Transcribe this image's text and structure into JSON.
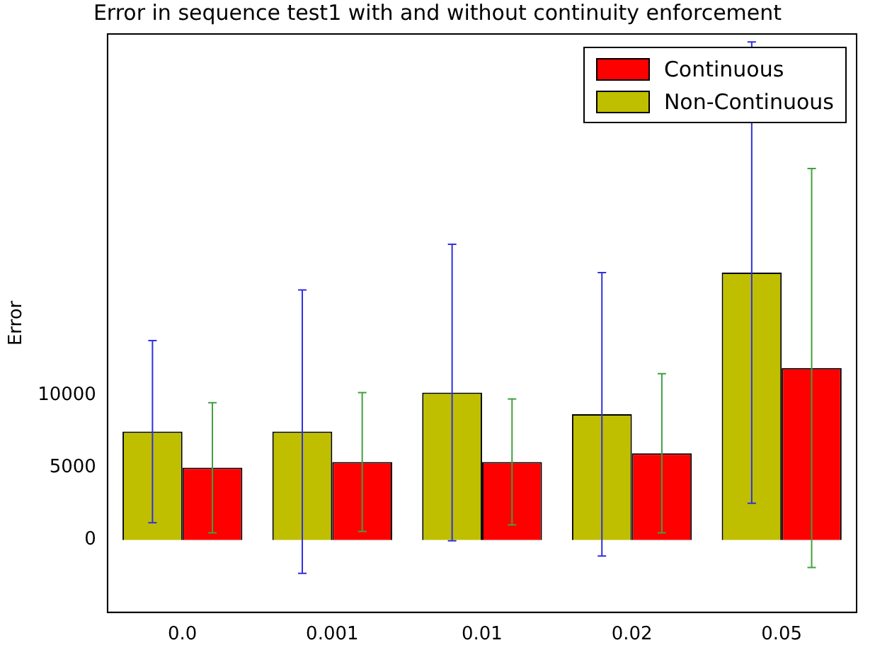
{
  "chart_data": {
    "type": "bar",
    "title": "Error in sequence test1 with and without continuity enforcement",
    "ylabel": "Error",
    "categories": [
      "0.0",
      "0.001",
      "0.01",
      "0.02",
      "0.05"
    ],
    "series": [
      {
        "name": "Non-Continuous",
        "color": "#bfbf00",
        "values": [
          7500,
          7500,
          10200,
          8700,
          18500
        ],
        "errors": [
          6300,
          9800,
          10250,
          9800,
          15950
        ]
      },
      {
        "name": "Continuous",
        "color": "#ff0000",
        "values": [
          5000,
          5400,
          5400,
          6000,
          11900
        ],
        "errors": [
          4500,
          4800,
          4350,
          5500,
          13800
        ]
      }
    ],
    "ylim": [
      -5000,
      35000
    ],
    "yticks": [
      0,
      5000,
      10000
    ],
    "grid": false,
    "legend": "top right"
  }
}
